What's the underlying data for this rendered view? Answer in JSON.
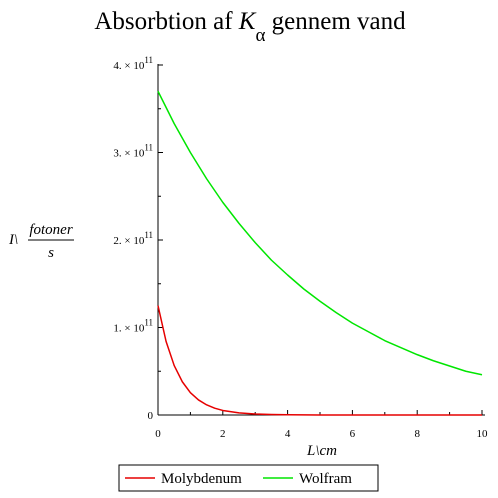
{
  "chart_data": {
    "type": "line",
    "title": {
      "main": "Absorbtion af ",
      "symbol": "K",
      "subscript": "α",
      "rest": " gennem vand"
    },
    "xlabel": "L\\cm",
    "ylabel": {
      "prefix": "I\\",
      "numerator": "fotoner",
      "denominator": "s"
    },
    "xlim": [
      0,
      10
    ],
    "ylim": [
      0,
      400000000000.0
    ],
    "x_ticks": [
      {
        "value": 0,
        "label": "0"
      },
      {
        "value": 2,
        "label": "2"
      },
      {
        "value": 4,
        "label": "4"
      },
      {
        "value": 6,
        "label": "6"
      },
      {
        "value": 8,
        "label": "8"
      },
      {
        "value": 10,
        "label": "10"
      }
    ],
    "y_ticks": [
      {
        "value": 0,
        "label": "0",
        "mantissa": "",
        "exponent": ""
      },
      {
        "value": 100000000000.0,
        "label": "",
        "mantissa": "1. × 10",
        "exponent": "11"
      },
      {
        "value": 200000000000.0,
        "label": "",
        "mantissa": "2. × 10",
        "exponent": "11"
      },
      {
        "value": 300000000000.0,
        "label": "",
        "mantissa": "3. × 10",
        "exponent": "11"
      },
      {
        "value": 400000000000.0,
        "label": "",
        "mantissa": "4. × 10",
        "exponent": "11"
      }
    ],
    "grid": false,
    "legend_position": "bottom",
    "series": [
      {
        "name": "Molybdenum",
        "color": "#e60000",
        "x": [
          0,
          0.25,
          0.5,
          0.75,
          1,
          1.25,
          1.5,
          1.75,
          2,
          2.5,
          3,
          3.5,
          4,
          5,
          6,
          7,
          8,
          9,
          10
        ],
        "y": [
          125000000000.0,
          84000000000.0,
          56500000000.0,
          38000000000.0,
          25500000000.0,
          17200000000.0,
          11600000000.0,
          7800000000.0,
          5200000000.0,
          2400000000.0,
          1100000000.0,
          500000000.0,
          220000000.0,
          50000000.0,
          10000000.0,
          2000000.0,
          500000.0,
          100000.0,
          20000.0
        ]
      },
      {
        "name": "Wolfram",
        "color": "#00e600",
        "x": [
          0,
          0.5,
          1,
          1.5,
          2,
          2.5,
          3,
          3.5,
          4,
          4.5,
          5,
          5.5,
          6,
          6.5,
          7,
          7.5,
          8,
          8.5,
          9,
          9.5,
          10
        ],
        "y": [
          370000000000.0,
          333000000000.0,
          300000000000.0,
          270000000000.0,
          243000000000.0,
          219000000000.0,
          197000000000.0,
          177000000000.0,
          160000000000.0,
          144000000000.0,
          130000000000.0,
          117000000000.0,
          105000000000.0,
          95000000000.0,
          85000000000.0,
          77000000000.0,
          69000000000.0,
          62000000000.0,
          56000000000.0,
          50000000000.0,
          46000000000.0
        ]
      }
    ]
  }
}
